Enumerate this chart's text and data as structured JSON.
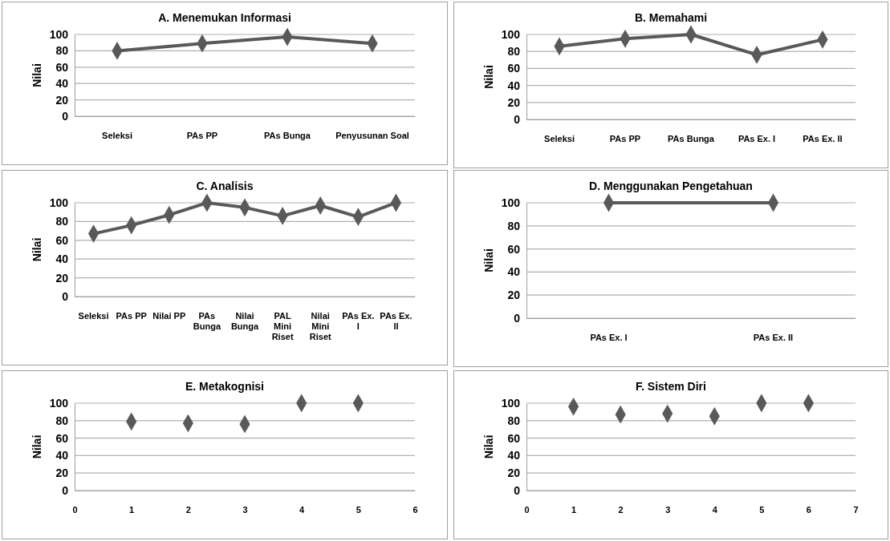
{
  "chart_data": [
    {
      "type": "line",
      "title": "A. Menemukan Informasi",
      "ylabel": "Nilai",
      "categories": [
        "Seleksi",
        "PAs PP",
        "PAs Bunga",
        "Penyusunan Soal"
      ],
      "values": [
        80,
        89,
        97,
        89
      ],
      "color": "#595959",
      "ylim": [
        0,
        100
      ],
      "yticks": [
        0,
        20,
        40,
        60,
        80,
        100
      ],
      "grid": "y",
      "marker": "diamond",
      "line_style": "solid"
    },
    {
      "type": "line",
      "title": "B. Memahami",
      "ylabel": "Nilai",
      "categories": [
        "Seleksi",
        "PAs PP",
        "PAs Bunga",
        "PAs Ex. I",
        "PAs Ex. II"
      ],
      "values": [
        86,
        95,
        100,
        76,
        94
      ],
      "color": "#595959",
      "ylim": [
        0,
        100
      ],
      "yticks": [
        0,
        20,
        40,
        60,
        80,
        100
      ],
      "grid": "y",
      "marker": "diamond",
      "line_style": "solid"
    },
    {
      "type": "line",
      "title": "C. Analisis",
      "ylabel": "Nilai",
      "categories": [
        "Seleksi",
        "PAs PP",
        "Nilai PP",
        "PAs Bunga",
        "Nilai Bunga",
        "PAL Mini Riset",
        "Nilai Mini Riset",
        "PAs Ex. I",
        "PAs Ex. II"
      ],
      "values": [
        67,
        76,
        87,
        100,
        95,
        86,
        97,
        85,
        100
      ],
      "color": "#595959",
      "ylim": [
        0,
        100
      ],
      "yticks": [
        0,
        20,
        40,
        60,
        80,
        100
      ],
      "grid": "y",
      "marker": "diamond",
      "line_style": "solid"
    },
    {
      "type": "line",
      "title": "D. Menggunakan  Pengetahuan",
      "ylabel": "Nilai",
      "categories": [
        "PAs Ex. I",
        "PAs Ex. II"
      ],
      "values": [
        100,
        100
      ],
      "color": "#595959",
      "ylim": [
        0,
        100
      ],
      "yticks": [
        0,
        20,
        40,
        60,
        80,
        100
      ],
      "grid": "y",
      "marker": "diamond",
      "line_style": "solid"
    },
    {
      "type": "scatter",
      "title": "E. Metakognisi",
      "ylabel": "Nilai",
      "x": [
        1,
        2,
        3,
        4,
        5
      ],
      "values": [
        79,
        77,
        76,
        100,
        100
      ],
      "color": "#595959",
      "xlim": [
        0,
        6
      ],
      "xticks": [
        0,
        1,
        2,
        3,
        4,
        5,
        6
      ],
      "ylim": [
        0,
        100
      ],
      "yticks": [
        0,
        20,
        40,
        60,
        80,
        100
      ],
      "grid": "y",
      "marker": "diamond"
    },
    {
      "type": "scatter",
      "title": "F. Sistem Diri",
      "ylabel": "Nilai",
      "x": [
        1,
        2,
        3,
        4,
        5,
        6
      ],
      "values": [
        96,
        87,
        88,
        85,
        100,
        100
      ],
      "color": "#595959",
      "xlim": [
        0,
        7
      ],
      "xticks": [
        0,
        1,
        2,
        3,
        4,
        5,
        6,
        7
      ],
      "ylim": [
        0,
        100
      ],
      "yticks": [
        0,
        20,
        40,
        60,
        80,
        100
      ],
      "grid": "y",
      "marker": "diamond"
    }
  ]
}
